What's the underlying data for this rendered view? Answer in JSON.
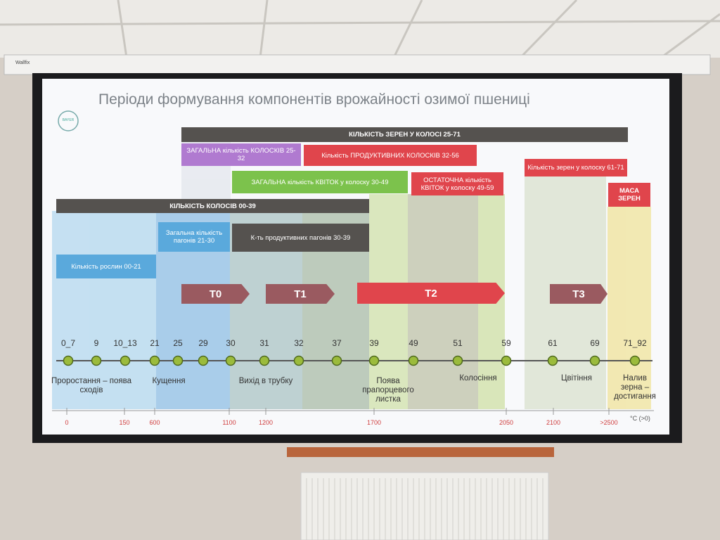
{
  "projector_brand": "Wallfix",
  "logo": "BAYER",
  "title": "Періоди формування компонентів врожайності озимої пшениці",
  "bars": [
    "КІЛЬКІСТЬ ЗЕРЕН У КОЛОСІ 25-71",
    "ЗАГАЛЬНА кількість КОЛОСКІВ 25-32",
    "Кількість ПРОДУКТИВНИХ КОЛОСКІВ 32-56",
    "ЗАГАЛЬНА кількість КВІТОК у колоску 30-49",
    "ОСТАТОЧНА кількість КВІТОК у колоску 49-59",
    "Кількість зерен у колоску 61-71",
    "МАСА ЗЕРЕН",
    "КІЛЬКІСТЬ КОЛОСІВ 00-39",
    "Кількість рослин 00-21",
    "Загальна кількість пагонів 21-30",
    "К-ть продуктивних пагонів 30-39"
  ],
  "treatments": [
    "T0",
    "T1",
    "T2",
    "T3"
  ],
  "stages": [
    "0_7",
    "9",
    "10_13",
    "21",
    "25",
    "29",
    "30",
    "31",
    "32",
    "37",
    "39",
    "49",
    "51",
    "59",
    "61",
    "69",
    "71_92"
  ],
  "phases": [
    "Проростання – поява сходів",
    "Кущення",
    "Вихід в трубку",
    "Поява прапорцевого листка",
    "Колосіння",
    "Цвітіння",
    "Налив зерна – достигання"
  ],
  "temperatures": [
    "0",
    "150",
    "600",
    "1100",
    "1200",
    "1700",
    "2050",
    "2100",
    ">2500"
  ],
  "temperature_unit": "°C (>0)"
}
